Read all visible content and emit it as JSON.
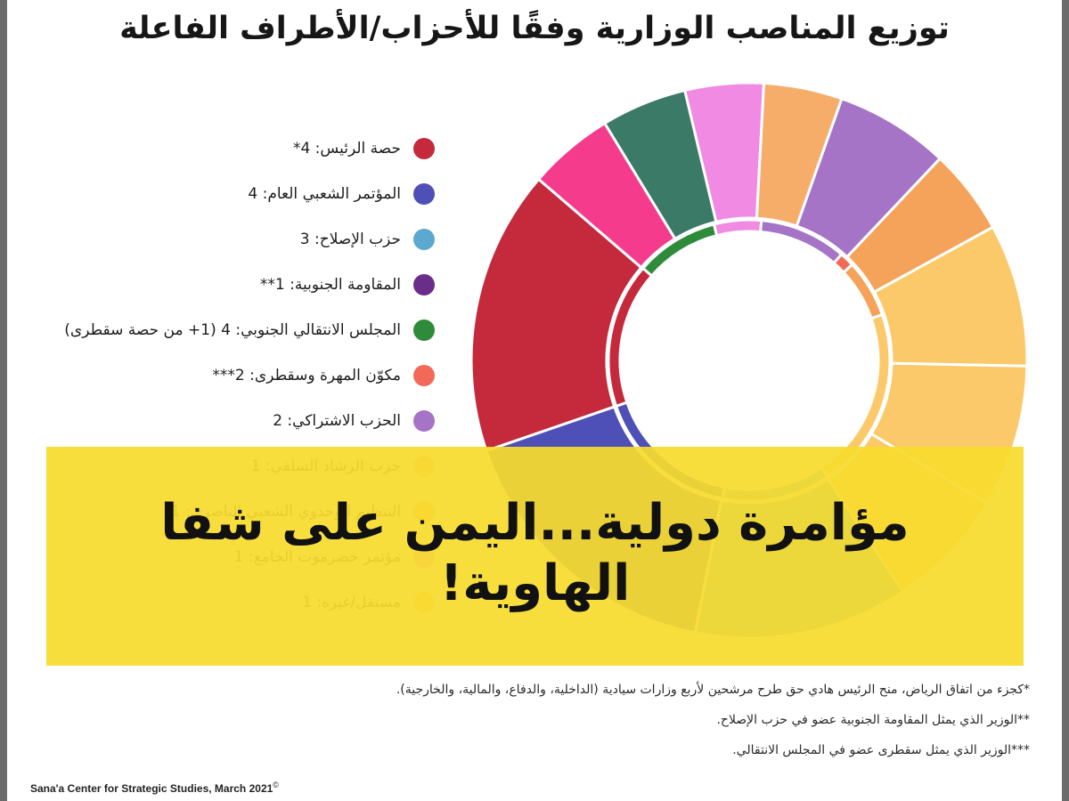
{
  "chart_data": {
    "type": "donut",
    "title": "توزيع المناصب الوزارية وفقًا للأحزاب/الأطراف الفاعلة",
    "slices": [
      {
        "label": "حصة الرئيس: 4*",
        "value": 4,
        "color": "#c4293c"
      },
      {
        "label": "المؤتمر الشعبي العام: 4",
        "value": 4,
        "color": "#4f4fb8"
      },
      {
        "label": "حزب الإصلاح: 3",
        "value": 3,
        "color": "#5ba8d0"
      },
      {
        "label": "المقاومة الجنوبية: 1**",
        "value": 1,
        "color": "#6a2e8a"
      },
      {
        "label": "المجلس الانتقالي الجنوبي: 4 (1+ من حصة سقطرى)",
        "value": 4,
        "color": "#2e8b3a"
      },
      {
        "label": "مكوّن المهرة وسقطرى: 2***",
        "value": 2,
        "color": "#f26a57"
      },
      {
        "label": "الحزب الاشتراكي: 2",
        "value": 2,
        "color": "#a574c6"
      },
      {
        "label": "حزب الرشاد السلفي: 1",
        "value": 1,
        "color": "#f7ad6a"
      },
      {
        "label": "التنظيم الوحدوي الشعبي الناصري: 1",
        "value": 1,
        "color": "#f5a25a"
      },
      {
        "label": "مؤتمر حضرموت الجامع: 1",
        "value": 1,
        "color": "#ef8fe0"
      },
      {
        "label": "مستقل/غيره: 1",
        "value": 1,
        "color": "#fcc96a"
      }
    ],
    "outer_ring": [
      {
        "value": 4,
        "color": "#c4293c"
      },
      {
        "value": 1.2,
        "color": "#f53c8c"
      },
      {
        "value": 1.2,
        "color": "#3b7a66"
      },
      {
        "value": 1.1,
        "color": "#f08ae2"
      },
      {
        "value": 1.1,
        "color": "#f7ad6a"
      },
      {
        "value": 1.6,
        "color": "#a574c6"
      },
      {
        "value": 1.2,
        "color": "#f5a25a"
      },
      {
        "value": 2.0,
        "color": "#fcc96a"
      },
      {
        "value": 2.0,
        "color": "#fcc96a"
      },
      {
        "value": 1.7,
        "color": "#fcc96a"
      },
      {
        "value": 3.0,
        "color": "#5ba8d0"
      },
      {
        "value": 4.0,
        "color": "#4f4fb8"
      }
    ],
    "inner_ring": [
      {
        "value": 4,
        "color": "#c4293c"
      },
      {
        "value": 2.3,
        "color": "#2e8b3a"
      },
      {
        "value": 1.3,
        "color": "#f08ae2"
      },
      {
        "value": 2.4,
        "color": "#a574c6"
      },
      {
        "value": 0.4,
        "color": "#f26a57"
      },
      {
        "value": 1.6,
        "color": "#f5a25a"
      },
      {
        "value": 5.0,
        "color": "#fcc96a"
      },
      {
        "value": 3.0,
        "color": "#5ba8d0"
      },
      {
        "value": 4.0,
        "color": "#4f4fb8"
      }
    ]
  },
  "banner": {
    "line1": "مؤامرة دولية...اليمن على شفا",
    "line2": "الهاوية!"
  },
  "footnotes": [
    "*كجزء من اتفاق الرياض، منح الرئيس هادي حق طرح مرشحين لأربع وزارات سيادية (الداخلية، والدفاع، والمالية، والخارجية).",
    "**الوزير الذي يمثل المقاومة الجنوبية عضو في حزب الإصلاح.",
    "***الوزير الذي يمثل سقطرى عضو في المجلس الانتقالي."
  ],
  "source": "Sana'a Center for Strategic Studies, March 2021",
  "source_mark": "©"
}
